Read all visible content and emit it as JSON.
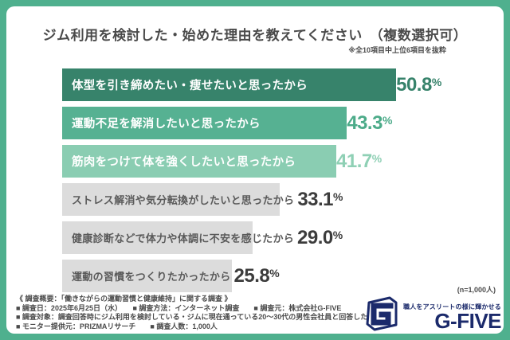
{
  "header": {
    "title": "ジム利用を検討した・始めた理由を教えてください　（複数選択可）",
    "note": "※全10項目中上位6項目を抜粋"
  },
  "chart_data": {
    "type": "bar",
    "orientation": "horizontal",
    "title": "ジム利用を検討した・始めた理由を教えてください（複数選択可）",
    "subtitle": "※全10項目中上位6項目を抜粋",
    "unit": "%",
    "xlim": [
      0,
      60
    ],
    "grid": false,
    "legend": false,
    "sample_note": "(n=1,000人)",
    "categories": [
      "体型を引き締めたい・痩せたいと思ったから",
      "運動不足を解消したいと思ったから",
      "筋肉をつけて体を強くしたいと思ったから",
      "ストレス解消や気分転換がしたいと思ったから",
      "健康診断などで体力や体調に不安を感じたから",
      "運動の習慣をつくりたかったから"
    ],
    "values": [
      50.8,
      43.3,
      41.7,
      33.1,
      29.0,
      25.8
    ],
    "value_labels": [
      "50.8%",
      "43.3%",
      "41.7%",
      "33.1%",
      "29.0%",
      "25.8%"
    ],
    "bar_colors": [
      "#37836b",
      "#56b192",
      "#8acdb2",
      "#dcdcdc",
      "#dcdcdc",
      "#dcdcdc"
    ],
    "bar_label_colors": [
      "#ffffff",
      "#ffffff",
      "#ffffff",
      "#5a5a5a",
      "#5a5a5a",
      "#5a5a5a"
    ],
    "value_label_colors": [
      "#37836b",
      "#4cab89",
      "#8fd0b5",
      "#3c3c3c",
      "#3c3c3c",
      "#3c3c3c"
    ]
  },
  "footer": {
    "n_label": "(n=1,000人)",
    "lines": [
      "《 調査概要：「働きながらの運動習慣と健康維持」に関する調査 》",
      "■ 調査日：2025年6月25日（水）　　■ 調査方法：インターネット調査　　■ 調査元：株式会社G-FIVE",
      "■ 調査対象：調査回答時にジム利用を検討している・ジムに現在通っている20～30代の男性会社員と回答したモニター",
      "■ モニター提供元：PRIZMAリサーチ　　■ 調査人数：1,000人"
    ]
  },
  "logo": {
    "tagline": "職人をアスリートの様に輝かせる",
    "name": "G-FIVE"
  },
  "colors": {
    "frame_green": "#4fb08e",
    "card_bg": "#ffffff",
    "logo_navy": "#1b2a6b",
    "title_text": "#4a4a4a"
  }
}
